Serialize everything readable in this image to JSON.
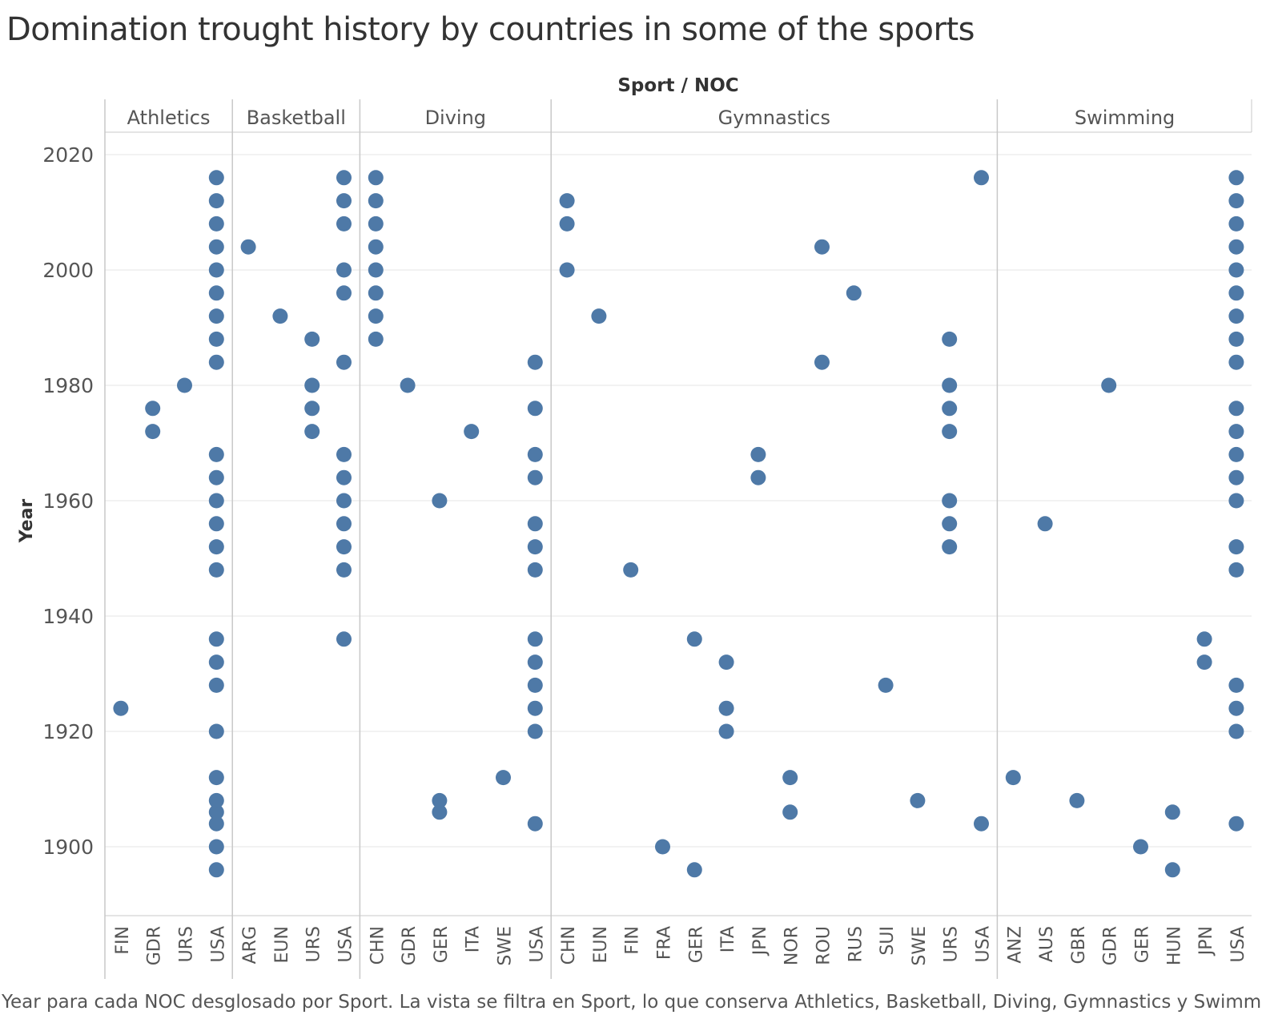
{
  "title": "Domination trought history by countries in some of the sports",
  "caption": "Year para cada NOC desglosado por Sport. La vista se filtra en Sport, lo que conserva Athletics, Basketball, Diving, Gymnastics y Swimming.",
  "colors": {
    "dot": "#4e79a7",
    "grid": "#e6e6e6",
    "divider": "#c8c8c8",
    "text": "#555555"
  },
  "chart_data": {
    "type": "scatter",
    "column_header": "Sport / NOC",
    "ylabel": "Year",
    "ylim": [
      1886,
      2024
    ],
    "yticks": [
      1900,
      1920,
      1940,
      1960,
      1980,
      2000,
      2020
    ],
    "grid": true,
    "panels": [
      {
        "sport": "Athletics",
        "nocs": [
          {
            "noc": "FIN",
            "years": [
              1924
            ]
          },
          {
            "noc": "GDR",
            "years": [
              1972,
              1976
            ]
          },
          {
            "noc": "URS",
            "years": [
              1980
            ]
          },
          {
            "noc": "USA",
            "years": [
              1896,
              1900,
              1904,
              1906,
              1908,
              1912,
              1920,
              1928,
              1932,
              1936,
              1948,
              1952,
              1956,
              1960,
              1964,
              1968,
              1984,
              1988,
              1992,
              1996,
              2000,
              2004,
              2008,
              2012,
              2016
            ]
          }
        ]
      },
      {
        "sport": "Basketball",
        "nocs": [
          {
            "noc": "ARG",
            "years": [
              2004
            ]
          },
          {
            "noc": "EUN",
            "years": [
              1992
            ]
          },
          {
            "noc": "URS",
            "years": [
              1972,
              1976,
              1980,
              1988
            ]
          },
          {
            "noc": "USA",
            "years": [
              1936,
              1948,
              1952,
              1956,
              1960,
              1964,
              1968,
              1984,
              1996,
              2000,
              2008,
              2012,
              2016
            ]
          }
        ]
      },
      {
        "sport": "Diving",
        "nocs": [
          {
            "noc": "CHN",
            "years": [
              1988,
              1992,
              1996,
              2000,
              2004,
              2008,
              2012,
              2016
            ]
          },
          {
            "noc": "GDR",
            "years": [
              1980
            ]
          },
          {
            "noc": "GER",
            "years": [
              1906,
              1908,
              1960
            ]
          },
          {
            "noc": "ITA",
            "years": [
              1972
            ]
          },
          {
            "noc": "SWE",
            "years": [
              1912
            ]
          },
          {
            "noc": "USA",
            "years": [
              1904,
              1920,
              1924,
              1928,
              1932,
              1936,
              1948,
              1952,
              1956,
              1964,
              1968,
              1976,
              1984
            ]
          }
        ]
      },
      {
        "sport": "Gymnastics",
        "nocs": [
          {
            "noc": "CHN",
            "years": [
              2000,
              2008,
              2012
            ]
          },
          {
            "noc": "EUN",
            "years": [
              1992
            ]
          },
          {
            "noc": "FIN",
            "years": [
              1948
            ]
          },
          {
            "noc": "FRA",
            "years": [
              1900
            ]
          },
          {
            "noc": "GER",
            "years": [
              1896,
              1936
            ]
          },
          {
            "noc": "ITA",
            "years": [
              1920,
              1924,
              1932
            ]
          },
          {
            "noc": "JPN",
            "years": [
              1964,
              1968
            ]
          },
          {
            "noc": "NOR",
            "years": [
              1906,
              1912
            ]
          },
          {
            "noc": "ROU",
            "years": [
              1984,
              2004
            ]
          },
          {
            "noc": "RUS",
            "years": [
              1996
            ]
          },
          {
            "noc": "SUI",
            "years": [
              1928
            ]
          },
          {
            "noc": "SWE",
            "years": [
              1908
            ]
          },
          {
            "noc": "URS",
            "years": [
              1952,
              1956,
              1960,
              1972,
              1976,
              1980,
              1988
            ]
          },
          {
            "noc": "USA",
            "years": [
              1904,
              2016
            ]
          }
        ]
      },
      {
        "sport": "Swimming",
        "nocs": [
          {
            "noc": "ANZ",
            "years": [
              1912
            ]
          },
          {
            "noc": "AUS",
            "years": [
              1956
            ]
          },
          {
            "noc": "GBR",
            "years": [
              1908
            ]
          },
          {
            "noc": "GDR",
            "years": [
              1980
            ]
          },
          {
            "noc": "GER",
            "years": [
              1900
            ]
          },
          {
            "noc": "HUN",
            "years": [
              1896,
              1906
            ]
          },
          {
            "noc": "JPN",
            "years": [
              1932,
              1936
            ]
          },
          {
            "noc": "USA",
            "years": [
              1904,
              1920,
              1924,
              1928,
              1948,
              1952,
              1960,
              1964,
              1968,
              1972,
              1976,
              1984,
              1988,
              1992,
              1996,
              2000,
              2004,
              2008,
              2012,
              2016
            ]
          }
        ]
      }
    ]
  }
}
